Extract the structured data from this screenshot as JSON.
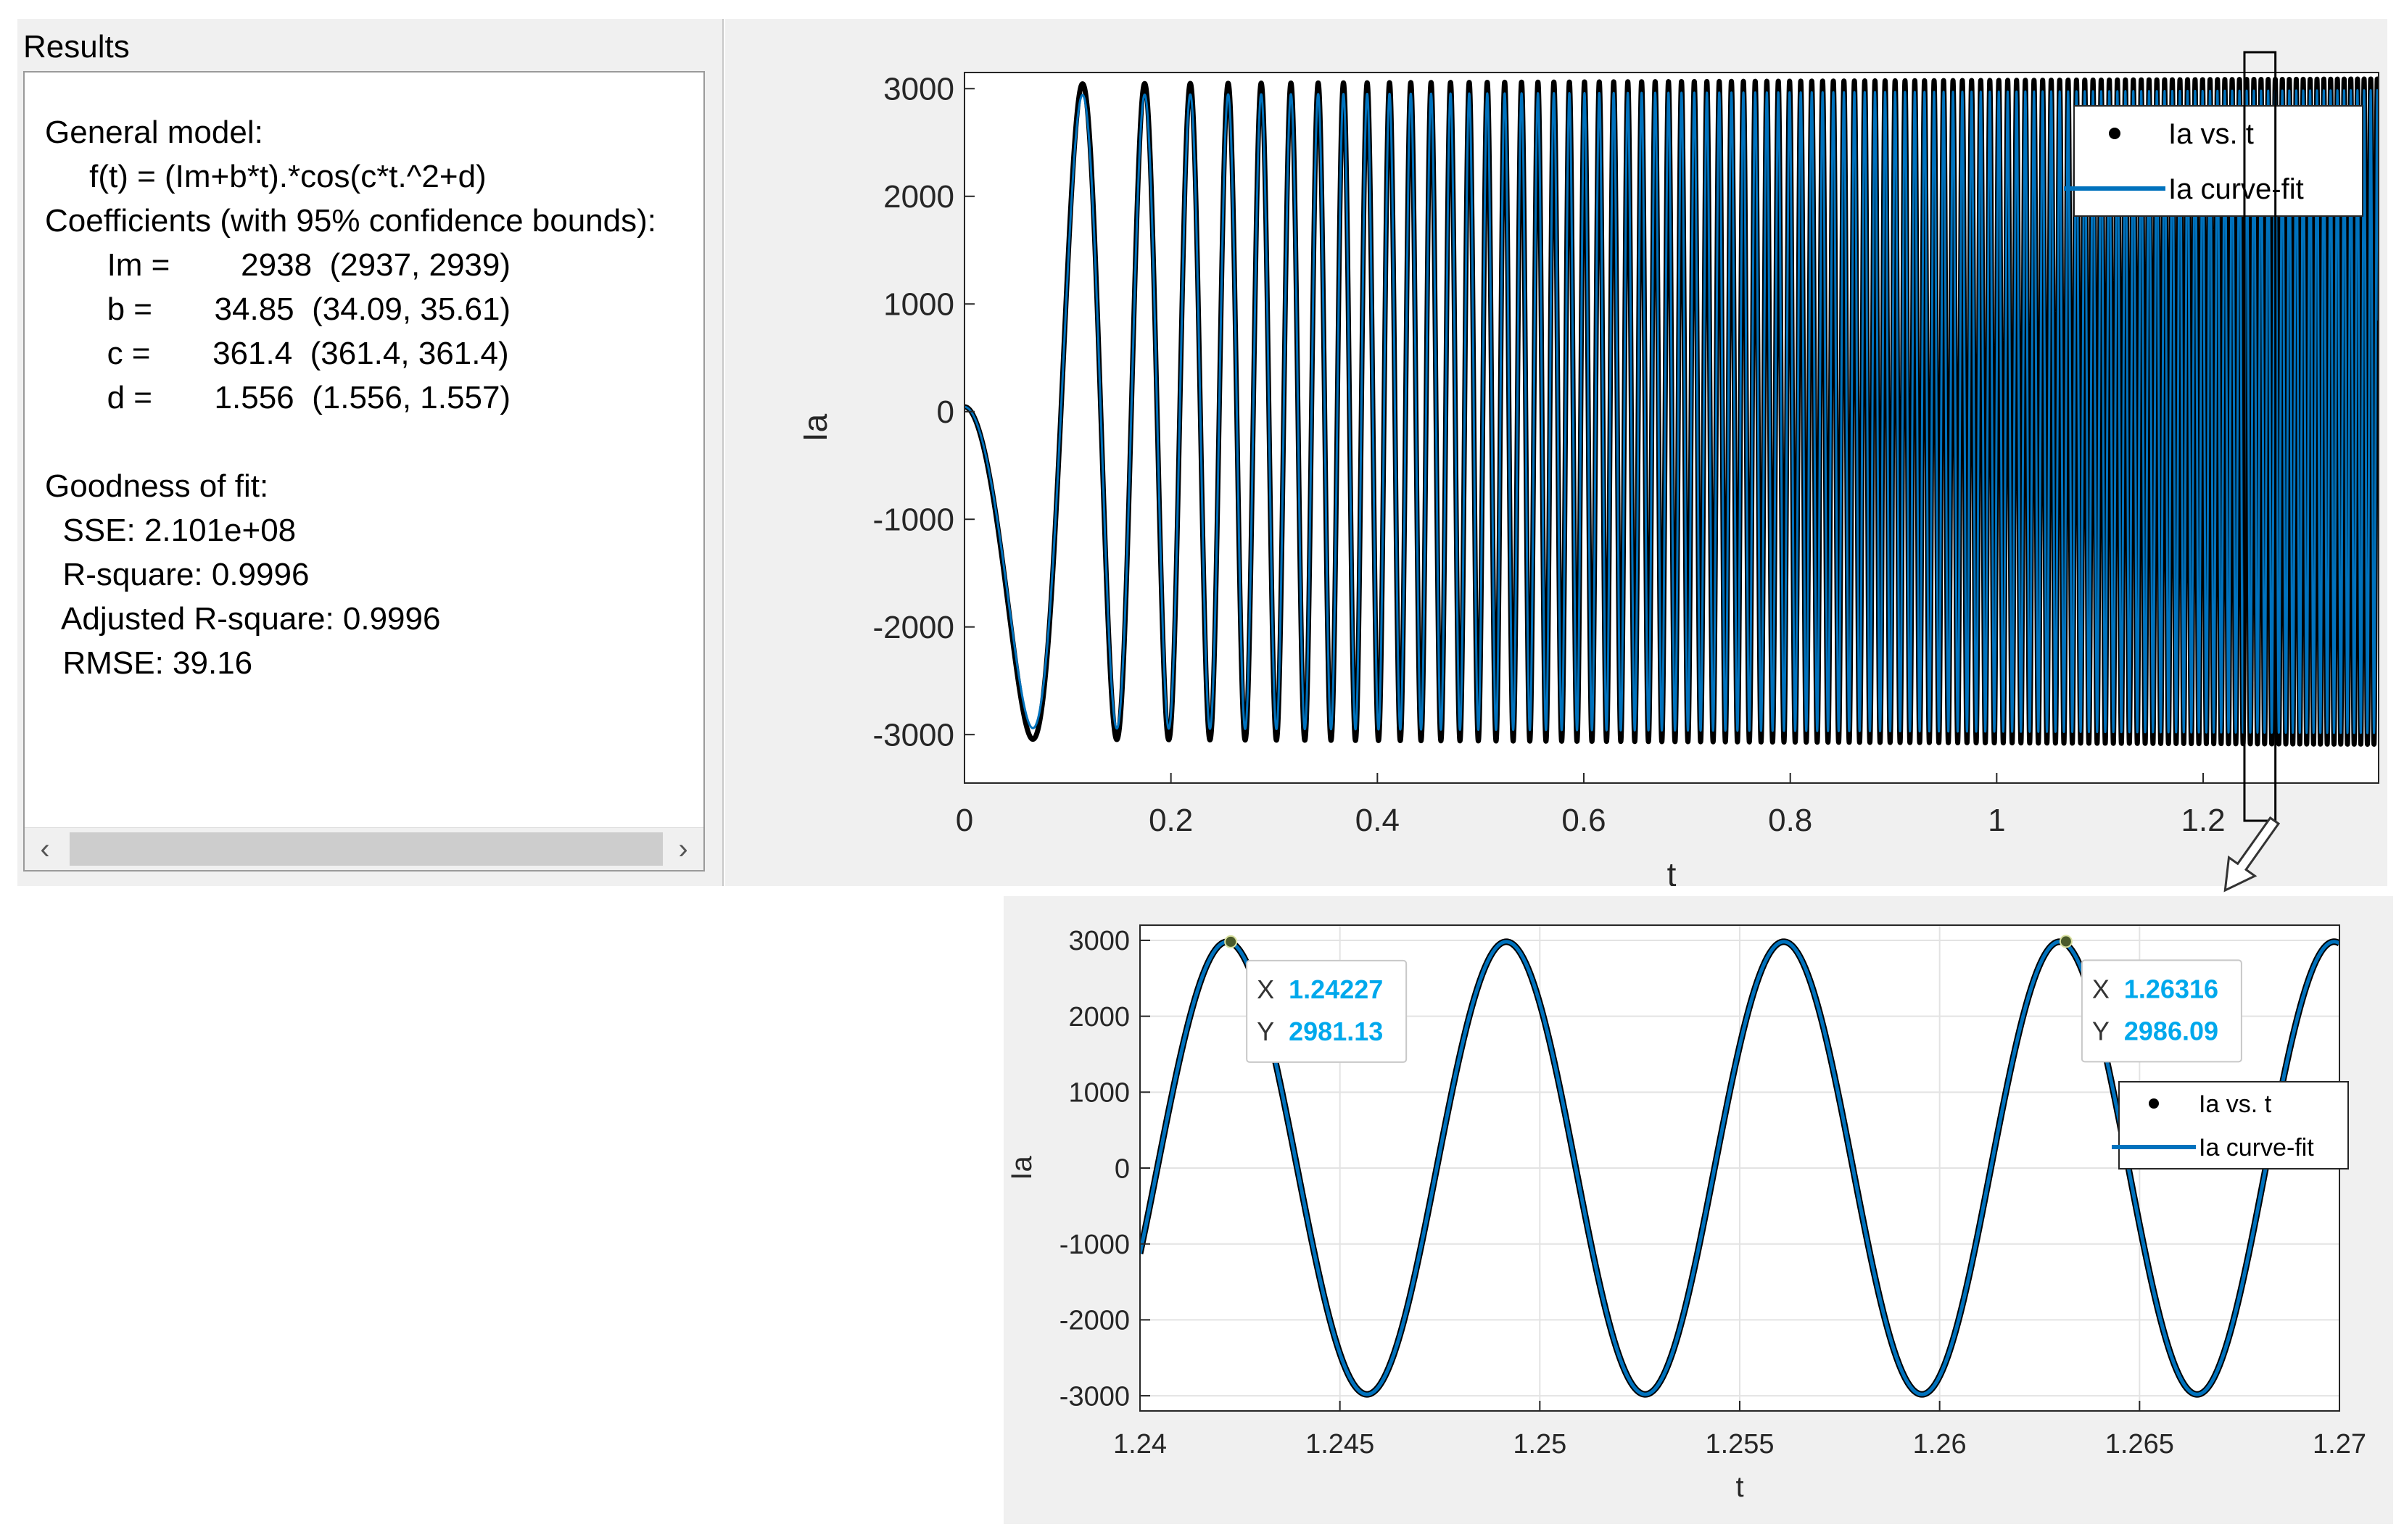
{
  "results": {
    "title": "Results",
    "lines": [
      "General model:",
      "     f(t) = (Im+b*t).*cos(c*t.^2+d)",
      "Coefficients (with 95% confidence bounds):",
      "       Im =        2938  (2937, 2939)",
      "       b =       34.85  (34.09, 35.61)",
      "       c =       361.4  (361.4, 361.4)",
      "       d =       1.556  (1.556, 1.557)",
      "",
      "Goodness of fit:",
      "  SSE: 2.101e+08",
      "  R-square: 0.9996",
      "  Adjusted R-square: 0.9996",
      "  RMSE: 39.16"
    ],
    "scroll_left_icon": "chevron-left-icon",
    "scroll_right_icon": "chevron-right-icon"
  },
  "chart_data": [
    {
      "type": "line",
      "xlabel": "t",
      "ylabel": "Ia",
      "xlim": [
        0,
        1.37
      ],
      "ylim": [
        -3450,
        3150
      ],
      "xticks": [
        0,
        0.2,
        0.4,
        0.6,
        0.8,
        1,
        1.2
      ],
      "xtick_labels": [
        "0",
        "0.2",
        "0.4",
        "0.6",
        "0.8",
        "1",
        "1.2"
      ],
      "yticks": [
        -3000,
        -2000,
        -1000,
        0,
        1000,
        2000,
        3000
      ],
      "ytick_labels": [
        "-3000",
        "-2000",
        "-1000",
        "0",
        "1000",
        "2000",
        "3000"
      ],
      "grid": false,
      "legend_position": "top-right",
      "series": [
        {
          "name": "Ia vs. t",
          "style": "points",
          "color": "#000000"
        },
        {
          "name": "Ia curve-fit",
          "style": "line",
          "color": "#0072bd"
        }
      ],
      "fit_model": {
        "Im": 2938,
        "b": 34.85,
        "c": 361.4,
        "d": 1.556
      },
      "zoom_window": [
        1.24,
        1.27
      ]
    },
    {
      "type": "line",
      "xlabel": "t",
      "ylabel": "Ia",
      "xlim": [
        1.24,
        1.27
      ],
      "ylim": [
        -3200,
        3200
      ],
      "xticks": [
        1.24,
        1.245,
        1.25,
        1.255,
        1.26,
        1.265,
        1.27
      ],
      "xtick_labels": [
        "1.24",
        "1.245",
        "1.25",
        "1.255",
        "1.26",
        "1.265",
        "1.27"
      ],
      "yticks": [
        -3000,
        -2000,
        -1000,
        0,
        1000,
        2000,
        3000
      ],
      "ytick_labels": [
        "-3000",
        "-2000",
        "-1000",
        "0",
        "1000",
        "2000",
        "3000"
      ],
      "grid": true,
      "legend_position": "right",
      "series": [
        {
          "name": "Ia vs. t",
          "style": "points",
          "color": "#000000"
        },
        {
          "name": "Ia curve-fit",
          "style": "line",
          "color": "#0072bd"
        }
      ],
      "fit_model": {
        "Im": 2938,
        "b": 34.85,
        "c": 361.4,
        "d": 1.556
      },
      "datatips": [
        {
          "x": 1.24227,
          "y": 2981.13,
          "x_label": "X",
          "y_label": "Y",
          "x_text": "1.24227",
          "y_text": "2981.13"
        },
        {
          "x": 1.26316,
          "y": 2986.09,
          "x_label": "X",
          "y_label": "Y",
          "x_text": "1.26316",
          "y_text": "2986.09"
        }
      ]
    }
  ],
  "colors": {
    "fit_line": "#0072bd",
    "data_points": "#000000",
    "datatip_value": "#00a8ec",
    "panel_bg": "#f0f0f0"
  }
}
